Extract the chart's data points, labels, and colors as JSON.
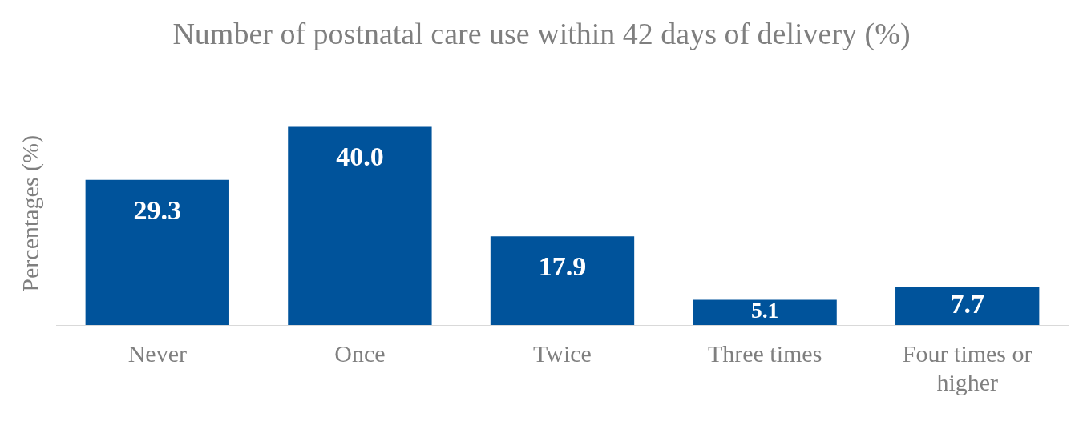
{
  "chart_data": {
    "type": "bar",
    "title": "Number of postnatal care use within 42 days of delivery (%)",
    "ylabel": "Percentages (%)",
    "categories": [
      "Never",
      "Once",
      "Twice",
      "Three times",
      "Four times or higher"
    ],
    "values": [
      29.3,
      40.0,
      17.9,
      5.1,
      7.7
    ],
    "value_labels": [
      "29.3",
      "40.0",
      "17.9",
      "5.1",
      "7.7"
    ],
    "color": "#00539b",
    "tick_labels": "x",
    "grid": false,
    "legend": false
  }
}
